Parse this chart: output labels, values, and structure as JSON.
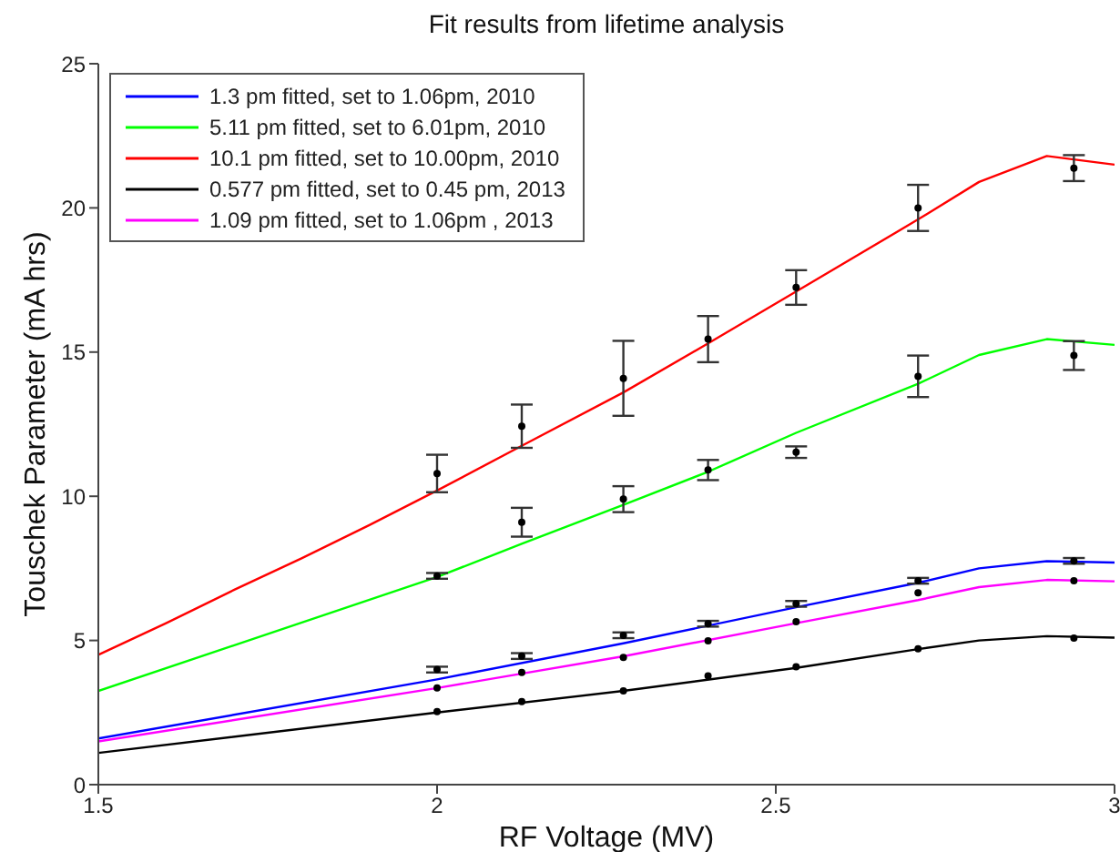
{
  "chart_data": {
    "type": "line",
    "title": "Fit results from lifetime analysis",
    "xlabel": "RF Voltage (MV)",
    "ylabel": "Touschek Parameter (mA hrs)",
    "xlim": [
      1.5,
      3
    ],
    "xticks": [
      1.5,
      2,
      2.5,
      3
    ],
    "ylim": [
      0,
      25
    ],
    "yticks": [
      0,
      5,
      10,
      15,
      20,
      25
    ],
    "grid": false,
    "legend": "top left",
    "marker": "none",
    "series": [
      {
        "name": "1.3 pm fitted, set to 1.06pm, 2010",
        "color": "#0000ff",
        "x": [
          1.5,
          2.0,
          2.275,
          2.53,
          2.71,
          2.8,
          2.9,
          3.0
        ],
        "values": [
          1.6,
          3.65,
          4.9,
          6.15,
          7.0,
          7.5,
          7.75,
          7.7
        ]
      },
      {
        "name": "5.11 pm fitted, set to 6.01pm, 2010",
        "color": "#00ff00",
        "x": [
          1.5,
          2.0,
          2.125,
          2.275,
          2.4,
          2.53,
          2.71,
          2.8,
          2.9,
          3.0
        ],
        "values": [
          3.25,
          7.2,
          8.35,
          9.7,
          10.85,
          12.2,
          13.9,
          14.9,
          15.45,
          15.25
        ]
      },
      {
        "name": "10.1 pm fitted, set to 10.00pm, 2010",
        "color": "#ff0000",
        "x": [
          1.5,
          1.6,
          1.7,
          1.8,
          1.9,
          2.0,
          2.125,
          2.275,
          2.4,
          2.53,
          2.71,
          2.8,
          2.9,
          3.0
        ],
        "values": [
          4.5,
          5.6,
          6.75,
          7.85,
          9.0,
          10.2,
          11.75,
          13.6,
          15.3,
          17.1,
          19.6,
          20.9,
          21.8,
          21.5
        ]
      },
      {
        "name": "0.577 pm fitted, set to 0.45 pm, 2013",
        "color": "#000000",
        "x": [
          1.5,
          2.0,
          2.275,
          2.53,
          2.71,
          2.8,
          2.9,
          3.0
        ],
        "values": [
          1.1,
          2.5,
          3.25,
          4.05,
          4.7,
          5.0,
          5.15,
          5.1
        ]
      },
      {
        "name": "1.09 pm fitted, set to 1.06pm , 2013",
        "color": "#ff00ff",
        "x": [
          1.5,
          2.0,
          2.275,
          2.53,
          2.71,
          2.8,
          2.9,
          3.0
        ],
        "values": [
          1.5,
          3.35,
          4.45,
          5.6,
          6.4,
          6.85,
          7.1,
          7.05
        ]
      },
      {
        "color": "#000000",
        "type": "scatter",
        "marker": "circle",
        "x": [
          2.0,
          2.125,
          2.275,
          2.4,
          2.53,
          2.71,
          2.94
        ],
        "values": [
          3.99,
          4.46,
          5.18,
          5.58,
          6.27,
          7.07,
          7.76
        ],
        "errors": [
          0.1,
          0.1,
          0.1,
          0.1,
          0.1,
          0.1,
          0.1
        ]
      },
      {
        "color": "#000000",
        "type": "scatter",
        "marker": "circle",
        "x": [
          2.0,
          2.125,
          2.275,
          2.4,
          2.53,
          2.71,
          2.94
        ],
        "values": [
          7.24,
          9.1,
          9.9,
          10.91,
          11.53,
          14.16,
          14.88
        ],
        "errors": [
          0.1,
          0.5,
          0.45,
          0.35,
          0.2,
          0.72,
          0.5
        ]
      },
      {
        "color": "#000000",
        "type": "scatter",
        "marker": "circle",
        "x": [
          2.0,
          2.125,
          2.275,
          2.4,
          2.53,
          2.71,
          2.94
        ],
        "values": [
          10.79,
          12.43,
          14.09,
          15.45,
          17.24,
          20.0,
          21.38
        ],
        "errors": [
          0.65,
          0.75,
          1.3,
          0.8,
          0.6,
          0.8,
          0.45
        ]
      },
      {
        "color": "#000000",
        "type": "scatter",
        "marker": "circle",
        "x": [
          2.0,
          2.125,
          2.275,
          2.4,
          2.53,
          2.71,
          2.94
        ],
        "values": [
          2.53,
          2.88,
          3.25,
          3.77,
          4.09,
          4.71,
          5.08
        ]
      },
      {
        "color": "#000000",
        "type": "scatter",
        "marker": "circle",
        "x": [
          2.0,
          2.125,
          2.275,
          2.4,
          2.53,
          2.71,
          2.94
        ],
        "values": [
          3.35,
          3.89,
          4.41,
          4.99,
          5.65,
          6.65,
          7.07
        ]
      }
    ]
  }
}
